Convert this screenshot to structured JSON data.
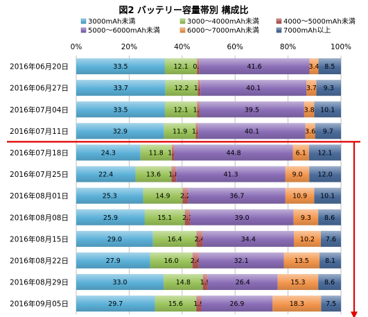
{
  "chart_data": {
    "type": "bar",
    "stacked": "percent",
    "orientation": "horizontal",
    "title": "図2  バッテリー容量帯別  構成比",
    "categories": [
      "2016年06月20日",
      "2016年06月27日",
      "2016年07月04日",
      "2016年07月11日",
      "2016年07月18日",
      "2016年07月25日",
      "2016年08月01日",
      "2016年08月08日",
      "2016年08月15日",
      "2016年08月22日",
      "2016年08月29日",
      "2016年09月05日"
    ],
    "series": [
      {
        "name": "3000mAh未満",
        "color": "#5bb0d8",
        "values": [
          33.5,
          33.7,
          33.5,
          32.9,
          24.3,
          22.4,
          25.3,
          25.9,
          29.0,
          27.9,
          33.0,
          29.7
        ]
      },
      {
        "name": "3000～4000mAh未満",
        "color": "#9bc45c",
        "values": [
          12.1,
          12.2,
          12.1,
          11.9,
          11.8,
          13.6,
          14.9,
          15.1,
          16.4,
          16.0,
          14.8,
          15.6
        ]
      },
      {
        "name": "4000～5000mAh未満",
        "color": "#b65a59",
        "values": [
          0.9,
          1.0,
          1.0,
          1.0,
          1.0,
          1.8,
          2.2,
          2.1,
          2.4,
          2.4,
          1.9,
          1.9
        ]
      },
      {
        "name": "5000～6000mAh未満",
        "color": "#8a6db6",
        "values": [
          41.6,
          40.1,
          39.5,
          40.1,
          44.8,
          41.3,
          36.7,
          39.0,
          34.4,
          32.1,
          26.4,
          26.9
        ]
      },
      {
        "name": "6000～7000mAh未満",
        "color": "#f3964d",
        "values": [
          3.4,
          3.7,
          3.8,
          3.6,
          6.1,
          9.0,
          10.9,
          9.3,
          10.2,
          13.5,
          15.3,
          18.3
        ]
      },
      {
        "name": "7000mAh以上",
        "color": "#4b6d9c",
        "values": [
          8.5,
          9.3,
          10.1,
          9.7,
          12.1,
          12.0,
          10.1,
          8.6,
          7.6,
          8.1,
          8.6,
          7.5
        ]
      }
    ],
    "x_ticks": [
      "0%",
      "20%",
      "40%",
      "60%",
      "80%",
      "100%"
    ],
    "xlim": [
      0,
      100
    ],
    "legend_position": "top",
    "grid": true,
    "annotation": {
      "divider_after_category": "2016年07月11日",
      "color": "#e00000"
    }
  }
}
